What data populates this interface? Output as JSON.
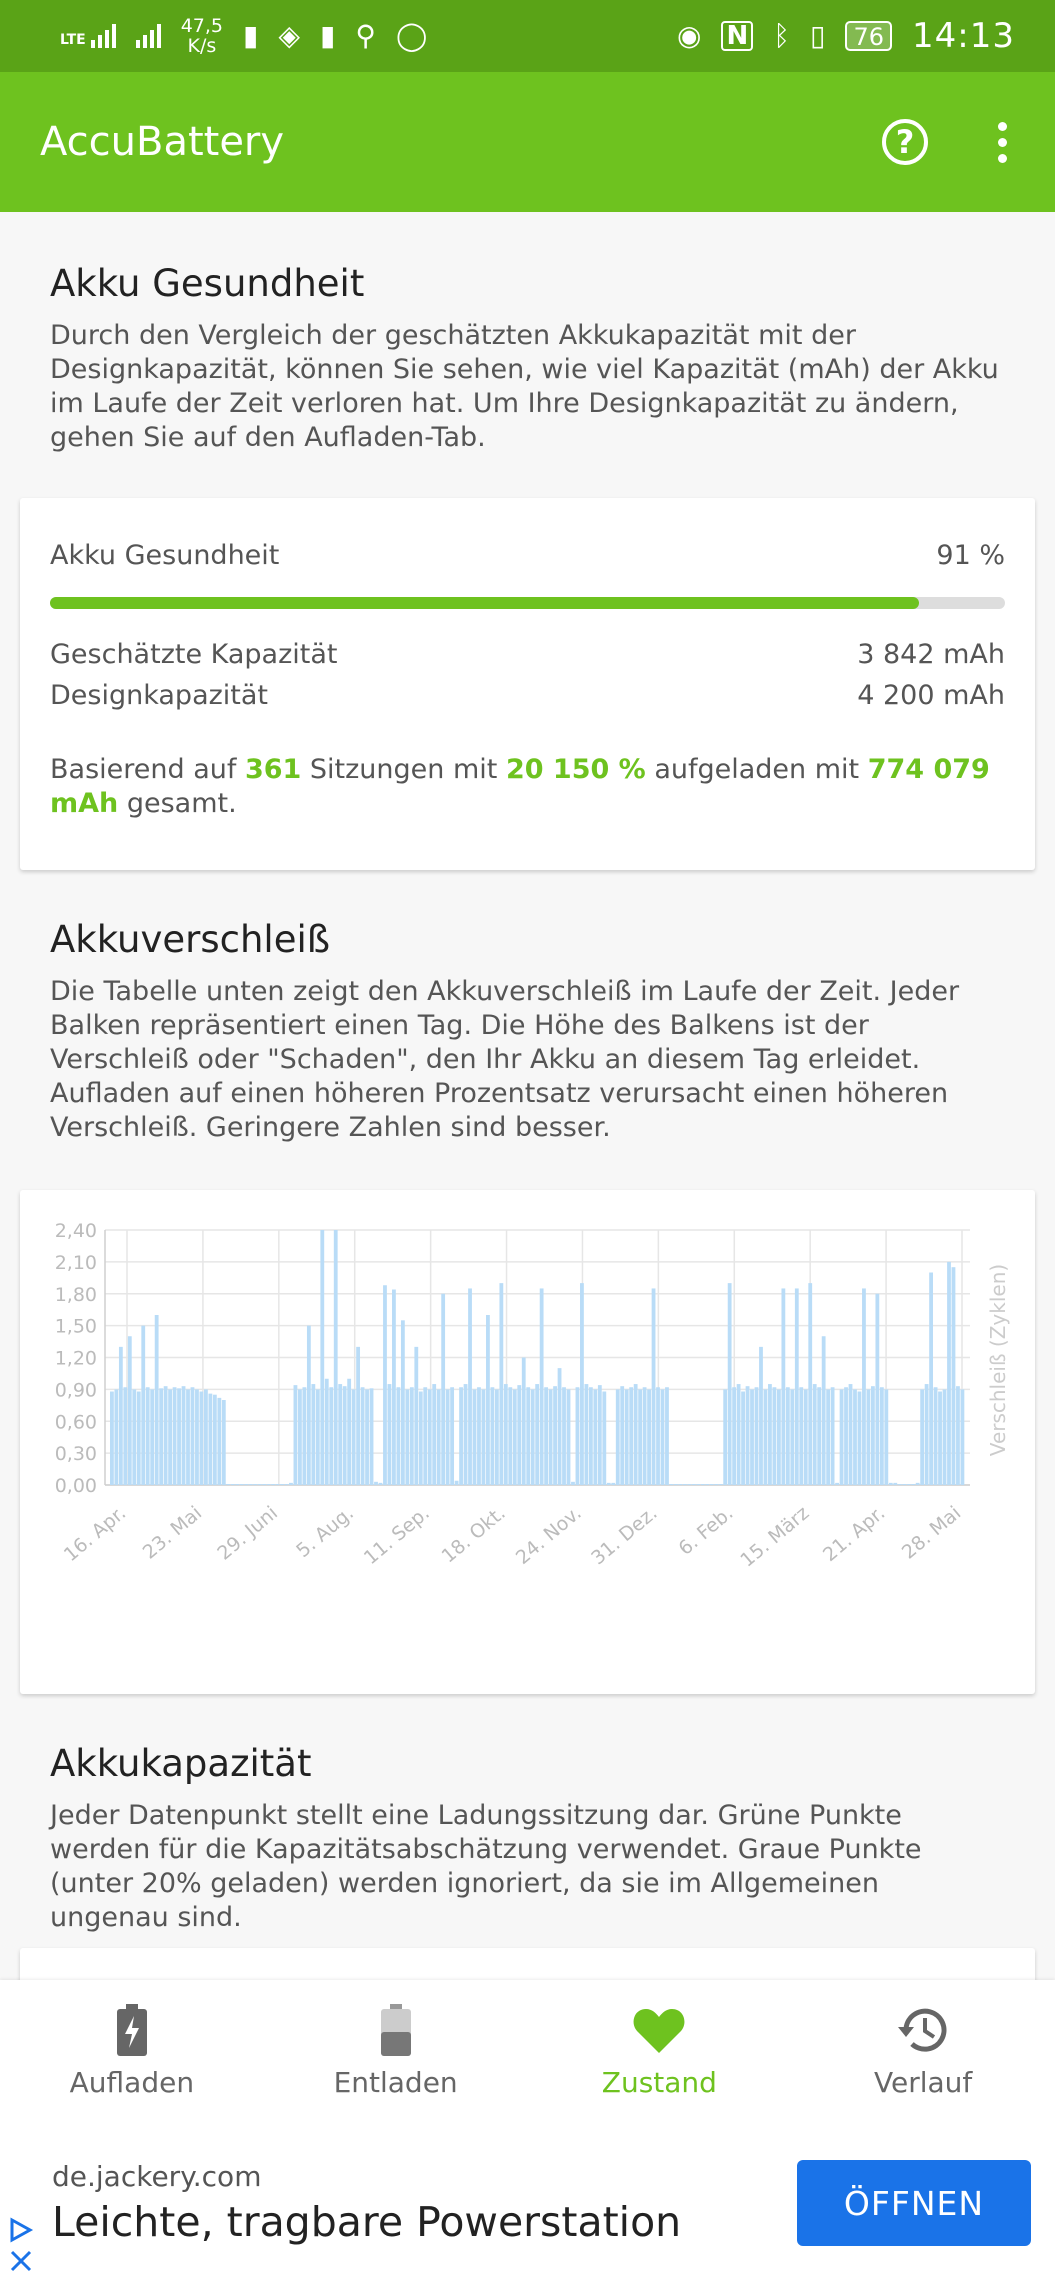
{
  "status_bar": {
    "network_type": "LTE",
    "speed_value": "47,5",
    "speed_unit": "K/s",
    "battery_level": "76",
    "time": "14:13",
    "nfc": "N"
  },
  "app_bar": {
    "title": "AccuBattery"
  },
  "health": {
    "title": "Akku Gesundheit",
    "description": "Durch den Vergleich der geschätzten Akkukapazität mit der Designkapazität, können Sie sehen, wie viel Kapazität (mAh) der Akku im Laufe der Zeit verloren hat. Um Ihre Designkapazität zu ändern, gehen Sie auf den Aufladen-Tab.",
    "card": {
      "label": "Akku Gesundheit",
      "value": "91 %",
      "percent": 91,
      "estimated_label": "Geschätzte Kapazität",
      "estimated_value": "3 842 mAh",
      "design_label": "Designkapazität",
      "design_value": "4 200 mAh",
      "summary_prefix": "Basierend auf ",
      "sessions": "361",
      "summary_mid1": " Sitzungen mit ",
      "percent_total": "20 150 %",
      "summary_mid2": " aufgeladen mit ",
      "mah_total": "774 079 mAh",
      "summary_suffix": " gesamt."
    }
  },
  "wear": {
    "title": "Akkuverschleiß",
    "description": "Die Tabelle unten zeigt den Akkuverschleiß im Laufe der Zeit. Jeder Balken repräsentiert einen Tag. Die Höhe des Balkens ist der Verschleiß oder \"Schaden\", den Ihr Akku an diesem Tag erleidet. Aufladen auf einen höheren Prozentsatz verursacht einen höheren Verschleiß. Geringere Zahlen sind besser."
  },
  "chart_data": {
    "type": "bar",
    "ylabel": "Verschleiß (Zyklen)",
    "ylim": [
      0,
      2.4
    ],
    "y_ticks": [
      "0,00",
      "0,30",
      "0,60",
      "0,90",
      "1,20",
      "1,50",
      "1,80",
      "2,10",
      "2,40"
    ],
    "x_ticks": [
      "16. Apr.",
      "23. Mai",
      "29. Juni",
      "5. Aug.",
      "11. Sep.",
      "18. Okt.",
      "24. Nov.",
      "31. Dez.",
      "6. Feb.",
      "15. März",
      "21. Apr.",
      "28. Mai"
    ],
    "bar_color": "#b9dcf7",
    "grid": true,
    "values": [
      0.88,
      0.9,
      1.3,
      0.92,
      1.4,
      0.9,
      0.88,
      1.5,
      0.92,
      0.9,
      1.6,
      0.91,
      0.93,
      0.9,
      0.92,
      0.91,
      0.93,
      0.9,
      0.92,
      0.9,
      0.88,
      0.9,
      0.86,
      0.85,
      0.82,
      0.8,
      0,
      0,
      0,
      0,
      0,
      0,
      0,
      0,
      0,
      0,
      0,
      0,
      0,
      0,
      0.02,
      0.94,
      0.9,
      0.92,
      1.5,
      0.95,
      0.9,
      2.45,
      1.0,
      0.92,
      2.4,
      0.95,
      0.93,
      1.0,
      0.9,
      1.3,
      0.92,
      0.9,
      0.91,
      0.03,
      0.02,
      1.88,
      0.95,
      1.84,
      0.92,
      1.55,
      0.9,
      0.92,
      1.3,
      0.88,
      0.92,
      0.9,
      0.95,
      0.9,
      1.8,
      0.9,
      0.92,
      0.04,
      0.92,
      0.95,
      1.85,
      0.9,
      0.92,
      0.9,
      1.6,
      0.92,
      0.9,
      1.9,
      0.95,
      0.92,
      0.9,
      0.94,
      1.2,
      0.92,
      0.9,
      0.95,
      1.85,
      0.92,
      0.9,
      0.93,
      1.1,
      0.92,
      0.9,
      0.03,
      0.92,
      1.9,
      0.95,
      0.92,
      0.9,
      0.94,
      0.88,
      0.02,
      0.02,
      0.9,
      0.93,
      0.9,
      0.92,
      0.95,
      0.9,
      0.92,
      0.9,
      1.85,
      0.92,
      0.9,
      0.92,
      0,
      0,
      0,
      0,
      0,
      0,
      0,
      0,
      0,
      0,
      0,
      0,
      0.9,
      1.9,
      0.92,
      0.95,
      0.88,
      0.93,
      0.9,
      0.92,
      1.3,
      0.9,
      0.95,
      0.92,
      0.9,
      1.85,
      0.92,
      0.9,
      1.85,
      0.92,
      0.9,
      1.9,
      0.95,
      0.92,
      1.4,
      0.9,
      0.92,
      0.02,
      0.9,
      0.92,
      0.95,
      0.9,
      0.88,
      1.85,
      0.9,
      0.93,
      1.8,
      0.92,
      0.9,
      0.02,
      0.02,
      0,
      0,
      0,
      0,
      0.02,
      0.9,
      0.95,
      2.0,
      0.92,
      0.88,
      0.9,
      2.1,
      2.05,
      0.93,
      0.9
    ]
  },
  "capacity": {
    "title": "Akkukapazität",
    "description": "Jeder Datenpunkt stellt eine Ladungssitzung dar. Grüne Punkte werden für die Kapazitätsabschätzung verwendet. Graue Punkte (unter 20% geladen) werden ignoriert, da sie im Allgemeinen ungenau sind."
  },
  "bottom_nav": {
    "charge": "Aufladen",
    "discharge": "Entladen",
    "health": "Zustand",
    "history": "Verlauf"
  },
  "ad": {
    "domain": "de.jackery.com",
    "headline": "Leichte, tragbare Powerstation",
    "button": "ÖFFNEN"
  },
  "colors": {
    "accent": "#6ec21f",
    "statusbar": "#5aa317",
    "ad_button": "#1a73e8"
  }
}
